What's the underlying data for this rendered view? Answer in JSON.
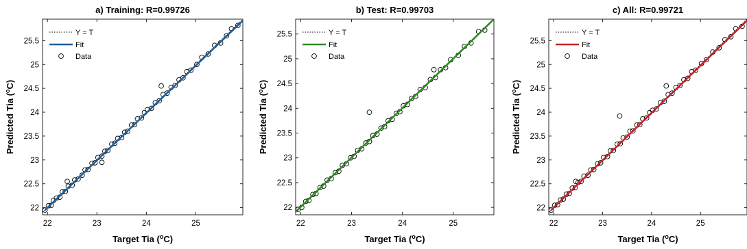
{
  "chart_data": [
    {
      "type": "scatter",
      "title": "a) Training: R=0.99726",
      "xlabel": "Target Tia (",
      "ylabel": "Predicted Tia (",
      "unit_sup": "o",
      "unit_tail": "C)",
      "xlim": [
        21.9,
        25.95
      ],
      "ylim": [
        21.85,
        25.95
      ],
      "xticks": [
        "22",
        "23",
        "24",
        "25"
      ],
      "yticks": [
        "22",
        "22.5",
        "23",
        "23.5",
        "24",
        "24.5",
        "25",
        "25.5"
      ],
      "fit_color": "#1f5f99",
      "fit_line": {
        "x": [
          21.95,
          25.95
        ],
        "y": [
          21.95,
          25.92
        ]
      },
      "legend": [
        "Y = T",
        "Fit",
        "Data"
      ],
      "legend_position": "top-left",
      "grid": false,
      "series": [
        {
          "x": [
            21.95,
            22.02,
            22.08,
            22.12,
            22.18,
            22.25,
            22.3,
            22.36,
            22.42,
            22.5,
            22.55,
            22.62,
            22.7,
            22.76,
            22.82,
            22.9,
            22.96,
            23.02,
            23.1,
            23.16,
            23.22,
            23.3,
            23.36,
            23.42,
            23.5,
            23.56,
            23.62,
            23.7,
            23.76,
            23.82,
            23.9,
            23.96,
            24.02,
            24.1,
            24.18,
            24.26,
            24.34,
            24.42,
            24.5,
            24.58,
            24.66,
            24.74,
            24.82,
            24.9,
            25.02,
            25.12,
            25.25,
            25.38,
            25.5,
            25.62,
            25.72,
            25.85,
            24.3,
            23.1,
            22.4
          ],
          "y": [
            21.95,
            22.04,
            22.05,
            22.15,
            22.2,
            22.22,
            22.33,
            22.34,
            22.45,
            22.47,
            22.58,
            22.6,
            22.68,
            22.79,
            22.8,
            22.93,
            22.94,
            23.05,
            23.08,
            23.18,
            23.2,
            23.33,
            23.35,
            23.45,
            23.47,
            23.58,
            23.6,
            23.73,
            23.74,
            23.86,
            23.88,
            23.99,
            24.05,
            24.08,
            24.2,
            24.24,
            24.37,
            24.4,
            24.52,
            24.56,
            24.68,
            24.72,
            24.85,
            24.88,
            25.0,
            25.15,
            25.22,
            25.4,
            25.45,
            25.6,
            25.75,
            25.82,
            24.55,
            22.95,
            22.55
          ]
        }
      ]
    },
    {
      "type": "scatter",
      "title": "b) Test: R=0.99703",
      "xlabel": "Target Tia (",
      "ylabel": "Predicted Tia (",
      "unit_sup": "o",
      "unit_tail": "C)",
      "xlim": [
        21.9,
        25.8
      ],
      "ylim": [
        21.85,
        25.8
      ],
      "xticks": [
        "22",
        "23",
        "24",
        "25"
      ],
      "yticks": [
        "22",
        "22.5",
        "23",
        "23.5",
        "24",
        "24.5",
        "25",
        "25.5"
      ],
      "fit_color": "#2e8b23",
      "fit_line": {
        "x": [
          21.92,
          25.8
        ],
        "y": [
          21.93,
          25.8
        ]
      },
      "legend": [
        "Y = T",
        "Fit",
        "Data"
      ],
      "legend_position": "top-left",
      "grid": false,
      "series": [
        {
          "x": [
            21.95,
            22.02,
            22.1,
            22.16,
            22.24,
            22.3,
            22.38,
            22.45,
            22.52,
            22.6,
            22.68,
            22.75,
            22.82,
            22.9,
            22.98,
            23.05,
            23.12,
            23.2,
            23.28,
            23.35,
            23.42,
            23.5,
            23.58,
            23.65,
            23.72,
            23.8,
            23.88,
            23.95,
            24.02,
            24.1,
            24.18,
            24.26,
            24.35,
            24.45,
            24.55,
            24.65,
            24.75,
            24.85,
            24.95,
            25.1,
            25.22,
            25.35,
            25.5,
            25.62,
            23.35,
            24.62
          ],
          "y": [
            21.96,
            22.0,
            22.12,
            22.14,
            22.26,
            22.28,
            22.4,
            22.43,
            22.55,
            22.58,
            22.7,
            22.73,
            22.85,
            22.88,
            23.0,
            23.03,
            23.15,
            23.18,
            23.3,
            23.33,
            23.45,
            23.48,
            23.6,
            23.63,
            23.75,
            23.78,
            23.9,
            23.93,
            24.05,
            24.08,
            24.2,
            24.24,
            24.38,
            24.42,
            24.58,
            24.62,
            24.78,
            24.82,
            24.98,
            25.07,
            25.25,
            25.32,
            25.55,
            25.58,
            23.92,
            24.78
          ]
        }
      ]
    },
    {
      "type": "scatter",
      "title": "c) All: R=0.99721",
      "xlabel": "Target Tia (",
      "ylabel": "Predicted Tia (",
      "unit_sup": "o",
      "unit_tail": "C)",
      "xlim": [
        21.9,
        25.95
      ],
      "ylim": [
        21.85,
        25.95
      ],
      "xticks": [
        "22",
        "23",
        "24",
        "25"
      ],
      "yticks": [
        "22",
        "22.5",
        "23",
        "23.5",
        "24",
        "24.5",
        "25",
        "25.5"
      ],
      "fit_color": "#c8222b",
      "fit_line": {
        "x": [
          21.95,
          25.95
        ],
        "y": [
          21.95,
          25.92
        ]
      },
      "legend": [
        "Y = T",
        "Fit",
        "Data"
      ],
      "legend_position": "top-left",
      "grid": false,
      "series": [
        {
          "x": [
            21.95,
            22.02,
            22.08,
            22.14,
            22.2,
            22.26,
            22.32,
            22.38,
            22.44,
            22.5,
            22.56,
            22.62,
            22.7,
            22.76,
            22.82,
            22.9,
            22.96,
            23.02,
            23.1,
            23.16,
            23.22,
            23.3,
            23.36,
            23.42,
            23.5,
            23.56,
            23.62,
            23.7,
            23.76,
            23.82,
            23.9,
            23.96,
            24.02,
            24.1,
            24.18,
            24.26,
            24.34,
            24.42,
            24.5,
            24.58,
            24.66,
            24.74,
            24.82,
            24.9,
            25.02,
            25.12,
            25.25,
            25.38,
            25.5,
            25.62,
            25.72,
            25.85,
            23.35,
            24.3,
            22.45
          ],
          "y": [
            21.95,
            22.05,
            22.06,
            22.16,
            22.18,
            22.28,
            22.3,
            22.41,
            22.42,
            22.53,
            22.55,
            22.66,
            22.68,
            22.79,
            22.8,
            22.92,
            22.94,
            23.05,
            23.07,
            23.19,
            23.2,
            23.33,
            23.34,
            23.46,
            23.48,
            23.6,
            23.61,
            23.73,
            23.74,
            23.86,
            23.88,
            23.99,
            24.04,
            24.07,
            24.2,
            24.23,
            24.37,
            24.4,
            24.52,
            24.56,
            24.68,
            24.71,
            24.85,
            24.88,
            25.02,
            25.1,
            25.26,
            25.35,
            25.52,
            25.58,
            25.75,
            25.8,
            23.92,
            24.55,
            22.55
          ]
        }
      ]
    }
  ]
}
